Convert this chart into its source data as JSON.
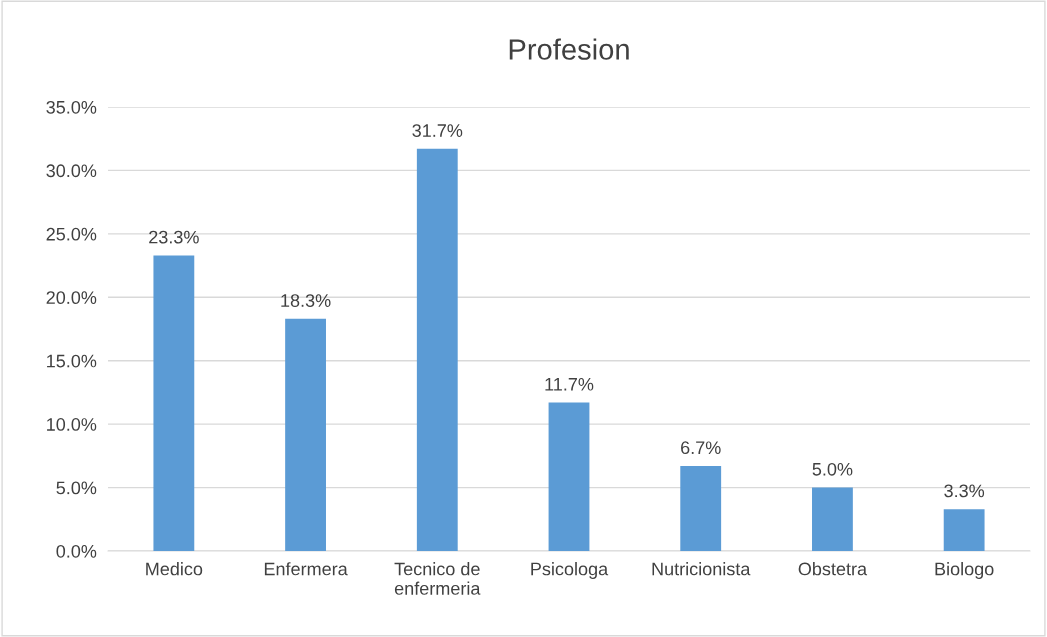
{
  "chart_data": {
    "type": "bar",
    "title": "Profesion",
    "categories": [
      "Medico",
      "Enfermera",
      "Tecnico de\nenfermeria",
      "Psicologa",
      "Nutricionista",
      "Obstetra",
      "Biologo"
    ],
    "values": [
      23.3,
      18.3,
      31.7,
      11.7,
      6.7,
      5.0,
      3.3
    ],
    "value_labels": [
      "23.3%",
      "18.3%",
      "31.7%",
      "11.7%",
      "6.7%",
      "5.0%",
      "3.3%"
    ],
    "color": "#5b9bd5",
    "ylim": [
      0,
      35
    ],
    "yticks": [
      {
        "value": 0,
        "label": "0.0%"
      },
      {
        "value": 5,
        "label": "5.0%"
      },
      {
        "value": 10,
        "label": "10.0%"
      },
      {
        "value": 15,
        "label": "15.0%"
      },
      {
        "value": 20,
        "label": "20.0%"
      },
      {
        "value": 25,
        "label": "25.0%"
      },
      {
        "value": 30,
        "label": "30.0%"
      },
      {
        "value": 35,
        "label": "35.0%"
      }
    ],
    "grid": "y",
    "legend": false
  }
}
